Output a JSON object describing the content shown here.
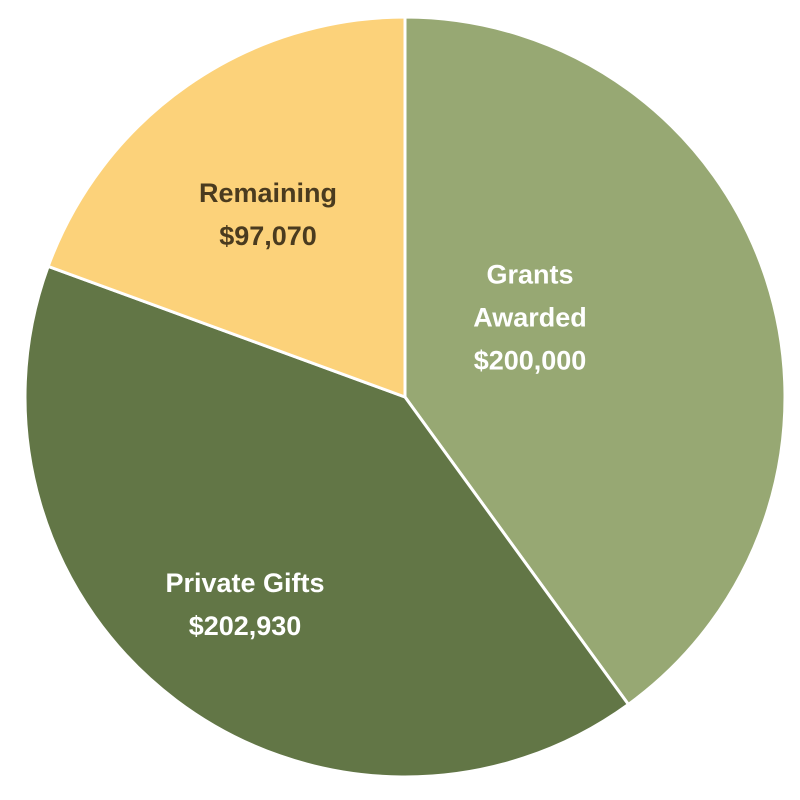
{
  "chart_data": {
    "type": "pie",
    "categories": [
      "Grants Awarded",
      "Private Gifts",
      "Remaining"
    ],
    "values": [
      200000,
      202930,
      97070
    ],
    "value_labels": [
      "$200,000",
      "$202,930",
      "$97,070"
    ],
    "colors": [
      "#97a873",
      "#627646",
      "#fcd27a"
    ]
  }
}
